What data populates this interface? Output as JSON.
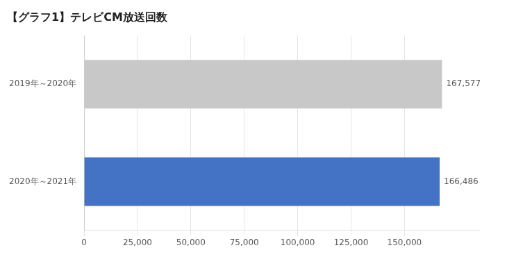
{
  "chart_data": {
    "type": "bar",
    "orientation": "horizontal",
    "title": "【グラフ1】テレビCM放送回数",
    "categories": [
      "2020年～2021年",
      "2019年～2020年"
    ],
    "values": [
      166486,
      167577
    ],
    "value_labels": [
      "166,486",
      "167,577"
    ],
    "colors": [
      "#4472C4",
      "#C8C8C8"
    ],
    "xlim": [
      0,
      185000
    ],
    "xticks": [
      0,
      {
        "value": 25000,
        "label": "25,000"
      },
      {
        "value": 50000,
        "label": "50,000"
      },
      {
        "value": 75000,
        "label": "75,000"
      },
      {
        "value": 100000,
        "label": "100,000"
      },
      {
        "value": 125000,
        "label": "125,000"
      },
      {
        "value": 150000,
        "label": "150,000"
      }
    ],
    "grid": true,
    "data_labels": true
  }
}
